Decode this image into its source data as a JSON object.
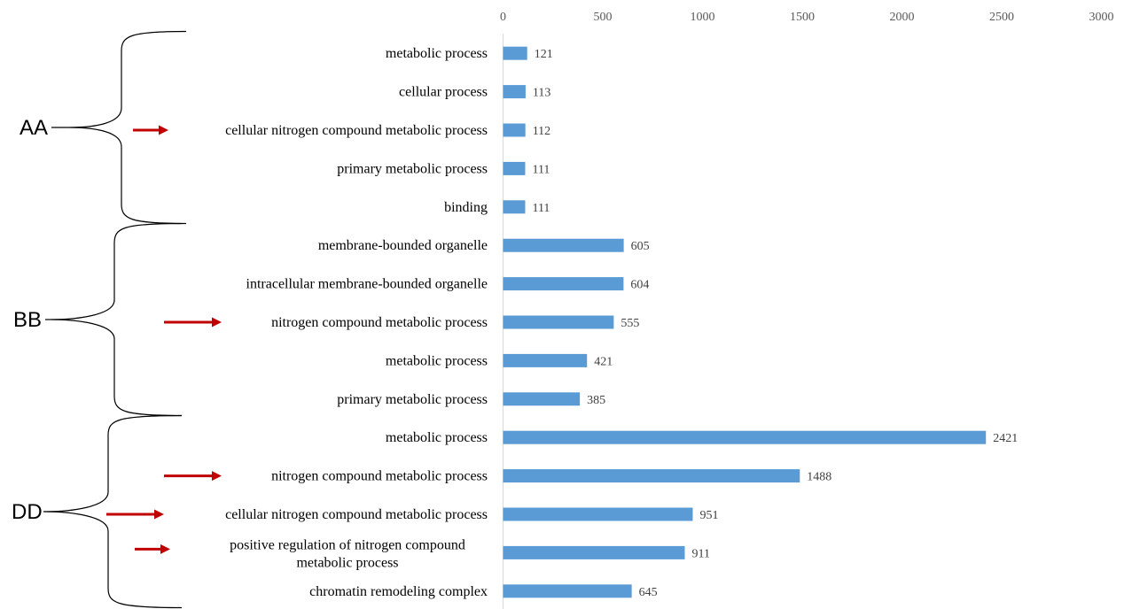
{
  "chart_data": {
    "type": "bar",
    "orientation": "horizontal",
    "xlim": [
      0,
      3000
    ],
    "xticks": [
      "0",
      "500",
      "1000",
      "1500",
      "2000",
      "2500",
      "3000"
    ],
    "bar_color": "#5b9bd5",
    "arrow_color": "#c00000",
    "categories": [
      "metabolic process",
      "cellular process",
      "cellular nitrogen compound metabolic process",
      "primary metabolic process",
      "binding",
      "membrane-bounded organelle",
      "intracellular membrane-bounded organelle",
      "nitrogen compound metabolic process",
      "metabolic process",
      "primary metabolic process",
      "metabolic process",
      "nitrogen compound metabolic process",
      "cellular nitrogen compound metabolic process",
      "positive regulation of nitrogen compound metabolic process",
      "chromatin remodeling complex"
    ],
    "values": [
      121,
      113,
      112,
      111,
      111,
      605,
      604,
      555,
      421,
      385,
      2421,
      1488,
      951,
      911,
      645
    ],
    "highlighted": [
      2,
      7,
      11,
      12,
      13
    ],
    "groups": [
      {
        "label": "AA",
        "start": 0,
        "end": 4
      },
      {
        "label": "BB",
        "start": 5,
        "end": 9
      },
      {
        "label": "DD",
        "start": 10,
        "end": 14
      }
    ],
    "grid": false,
    "legend": "none"
  }
}
